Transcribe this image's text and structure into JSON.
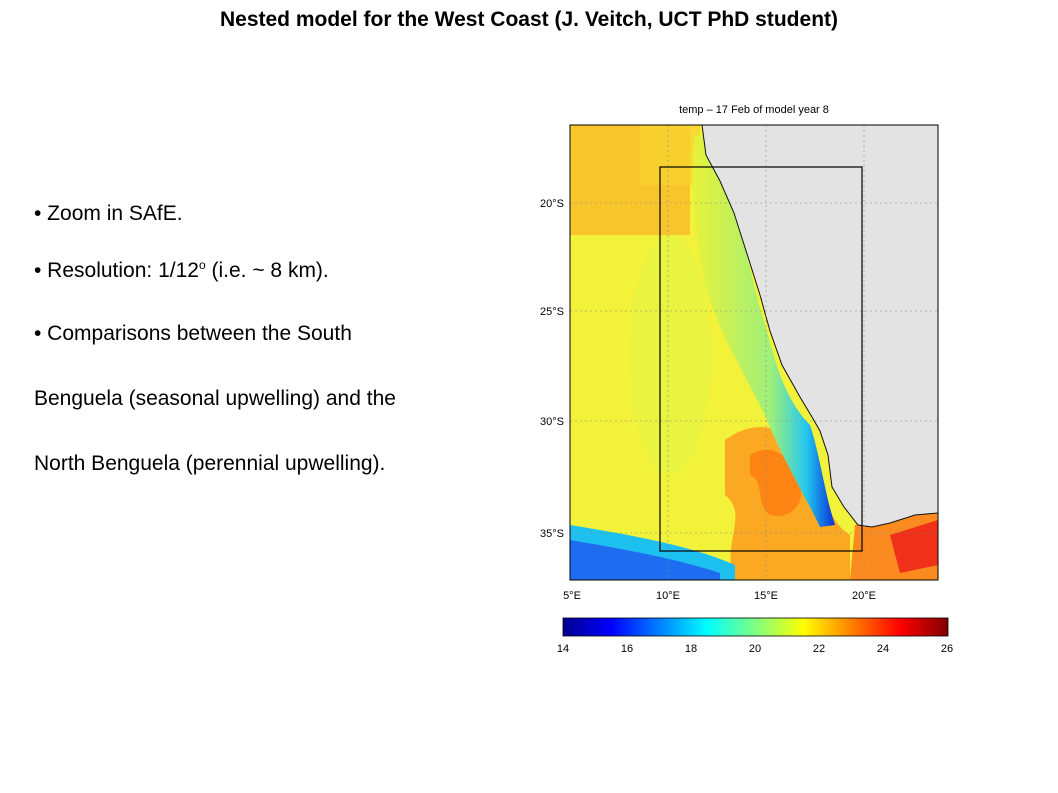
{
  "title": "Nested model for the West Coast (J. Veitch, UCT PhD student)",
  "bullets": {
    "b1": "• Zoom in SAfE.",
    "b2_pre": "• Resolution: 1/12",
    "b2_sup": "o",
    "b2_post": " (i.e. ~ 8 km).",
    "b3": "• Comparisons between the South",
    "b3_cont1": "Benguela (seasonal upwelling) and the",
    "b3_cont2": "North Benguela (perennial upwelling)."
  },
  "figure": {
    "map_title": "temp – 17 Feb of model year 8",
    "lat_ticks": [
      "20°S",
      "25°S",
      "30°S",
      "35°S"
    ],
    "lon_ticks": [
      "5°E",
      "10°E",
      "15°E",
      "20°E"
    ],
    "colorbar_ticks": [
      "14",
      "16",
      "18",
      "20",
      "22",
      "24",
      "26"
    ],
    "colors": {
      "land": "#e3e3e3",
      "nest_box": "#000000"
    }
  }
}
